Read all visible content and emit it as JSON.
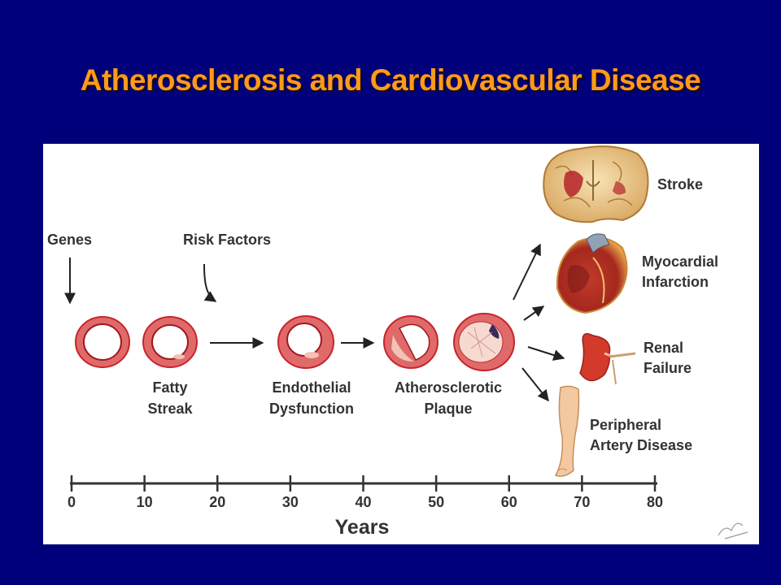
{
  "title": "Atherosclerosis and Cardiovascular Disease",
  "inputs": [
    "Genes",
    "Risk Factors"
  ],
  "stages": [
    {
      "line1": "Fatty",
      "line2": "Streak"
    },
    {
      "line1": "Endothelial",
      "line2": "Dysfunction"
    },
    {
      "line1": "Atherosclerotic",
      "line2": "Plaque"
    }
  ],
  "outcomes": [
    {
      "line1": "Stroke",
      "line2": ""
    },
    {
      "line1": "Myocardial",
      "line2": "Infarction"
    },
    {
      "line1": "Renal",
      "line2": "Failure"
    },
    {
      "line1": "Peripheral",
      "line2": "Artery Disease"
    }
  ],
  "axis": {
    "label": "Years",
    "ticks": [
      "0",
      "10",
      "20",
      "30",
      "40",
      "50",
      "60",
      "70",
      "80"
    ]
  },
  "colors": {
    "background": "#00007a",
    "title": "#ff9a1a",
    "vessel": "#c8242c",
    "text": "#333333"
  }
}
